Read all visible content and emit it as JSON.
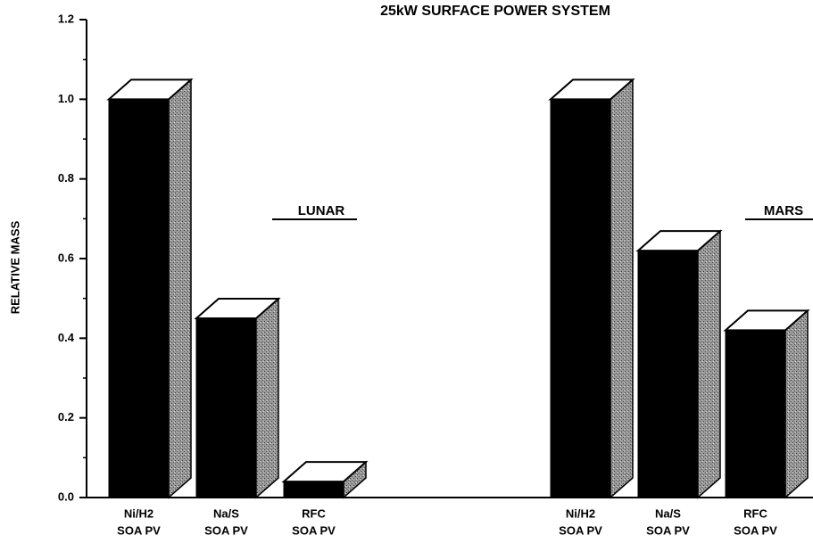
{
  "chart_data": {
    "type": "bar3d",
    "title": "25kW SURFACE POWER SYSTEM",
    "ylabel": "RELATIVE MASS",
    "categories": [
      [
        "Ni/H2",
        "SOA PV"
      ],
      [
        "Na/S",
        "SOA PV"
      ],
      [
        "RFC",
        "SOA PV"
      ]
    ],
    "series": [
      {
        "name": "LUNAR",
        "color": "#000000",
        "values": [
          1.0,
          0.45,
          0.04
        ]
      },
      {
        "name": "MARS",
        "color": "#000000",
        "values": [
          1.0,
          0.62,
          0.42
        ]
      }
    ],
    "ylim": [
      0,
      1.2
    ],
    "yticks": [
      {
        "value": 0,
        "label": "0.0"
      },
      {
        "value": 0.2,
        "label": "0.2"
      },
      {
        "value": 0.4,
        "label": "0.4"
      },
      {
        "value": 0.6,
        "label": "0.6"
      },
      {
        "value": 0.8,
        "label": "0.8"
      },
      {
        "value": 1,
        "label": "1.0"
      },
      {
        "value": 1.2,
        "label": "1.2"
      }
    ]
  }
}
